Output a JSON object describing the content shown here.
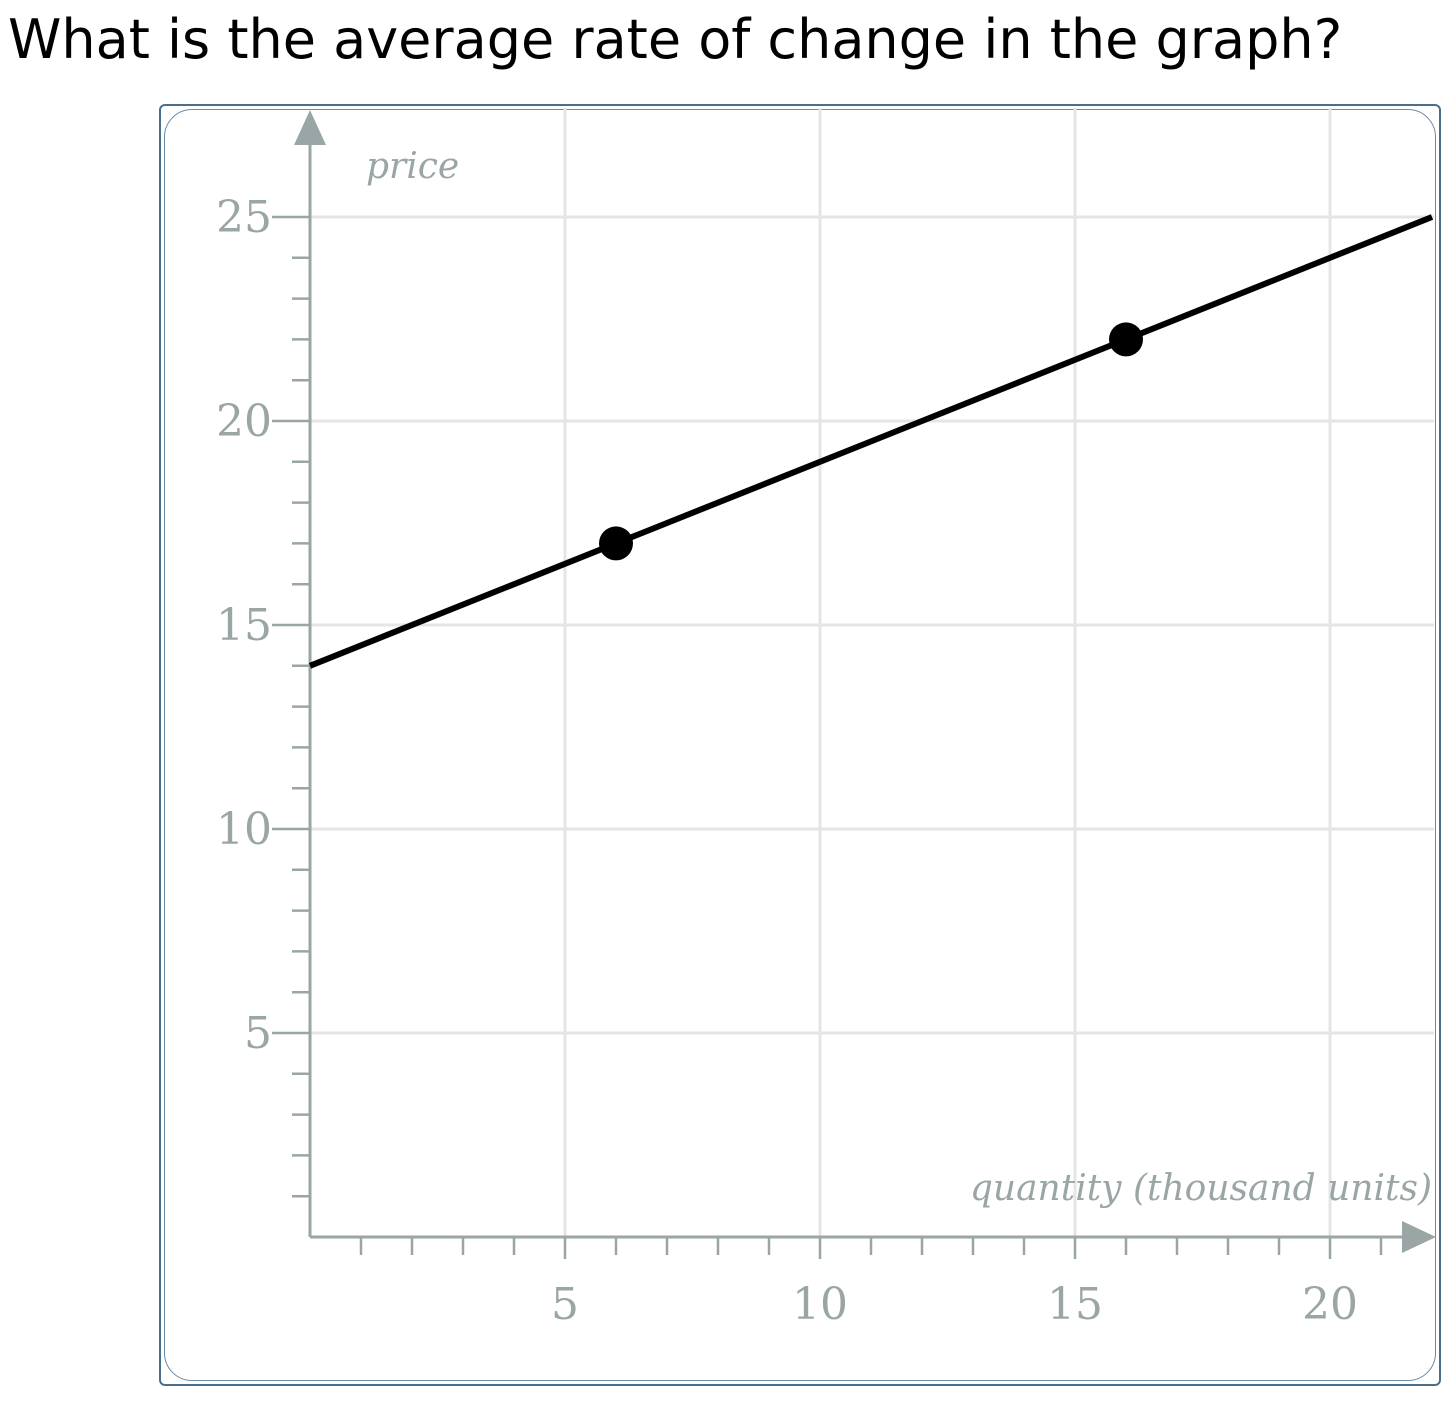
{
  "question": "What is the average rate of change in the graph?",
  "colors": {
    "axis": "#9aa6a6",
    "grid": "#e4e6e6",
    "line": "#000000",
    "frame": "#4a6f8c"
  },
  "chart_data": {
    "type": "line",
    "xlabel": "quantity (thousand units)",
    "ylabel": "price",
    "xlim": [
      0,
      22
    ],
    "ylim": [
      0,
      26
    ],
    "grid": true,
    "x_ticks": [
      5,
      10,
      15,
      20
    ],
    "y_ticks": [
      5,
      10,
      15,
      20,
      25
    ],
    "x_minor_step": 1,
    "y_minor_step": 1,
    "series": [
      {
        "points": [
          [
            0,
            14
          ],
          [
            22,
            25
          ]
        ]
      }
    ],
    "highlighted_points": [
      [
        6,
        17
      ],
      [
        16,
        22
      ]
    ]
  }
}
